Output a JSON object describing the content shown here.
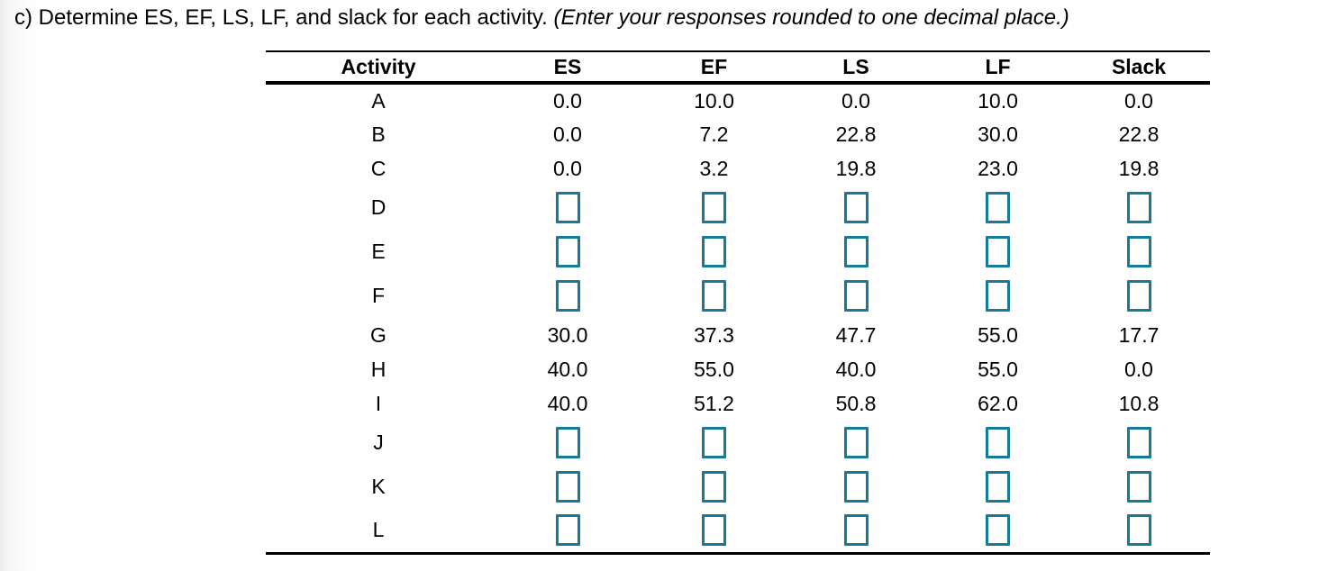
{
  "page": {
    "accent_color": "#157a9c"
  },
  "question": {
    "prefix": "c) Determine ES, EF, LS, LF, and slack for each activity. ",
    "note_italic": "(Enter your responses rounded to one decimal place.)"
  },
  "table": {
    "columns": [
      "Activity",
      "ES",
      "EF",
      "LS",
      "LF",
      "Slack"
    ],
    "rows": [
      {
        "activity": "A",
        "values": [
          "0.0",
          "10.0",
          "0.0",
          "10.0",
          "0.0"
        ]
      },
      {
        "activity": "B",
        "values": [
          "0.0",
          "7.2",
          "22.8",
          "30.0",
          "22.8"
        ]
      },
      {
        "activity": "C",
        "values": [
          "0.0",
          "3.2",
          "19.8",
          "23.0",
          "19.8"
        ]
      },
      {
        "activity": "D",
        "values": [
          null,
          null,
          null,
          null,
          null
        ]
      },
      {
        "activity": "E",
        "values": [
          null,
          null,
          null,
          null,
          null
        ]
      },
      {
        "activity": "F",
        "values": [
          null,
          null,
          null,
          null,
          null
        ]
      },
      {
        "activity": "G",
        "values": [
          "30.0",
          "37.3",
          "47.7",
          "55.0",
          "17.7"
        ]
      },
      {
        "activity": "H",
        "values": [
          "40.0",
          "55.0",
          "40.0",
          "55.0",
          "0.0"
        ]
      },
      {
        "activity": "I",
        "values": [
          "40.0",
          "51.2",
          "50.8",
          "62.0",
          "10.8"
        ]
      },
      {
        "activity": "J",
        "values": [
          null,
          null,
          null,
          null,
          null
        ]
      },
      {
        "activity": "K",
        "values": [
          null,
          null,
          null,
          null,
          null
        ]
      },
      {
        "activity": "L",
        "values": [
          null,
          null,
          null,
          null,
          null
        ]
      }
    ]
  }
}
